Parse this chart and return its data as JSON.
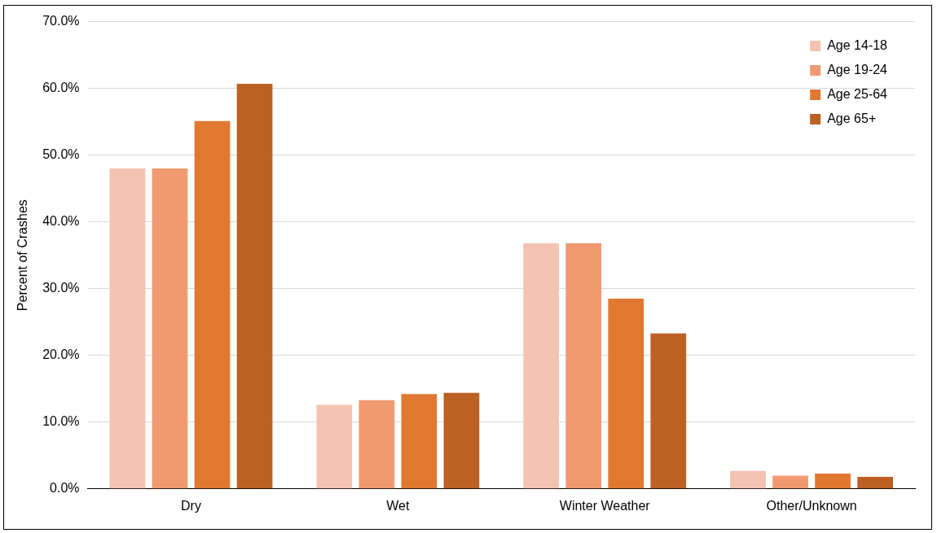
{
  "chart_data": {
    "type": "bar",
    "ylabel": "Percent of Crashes",
    "categories": [
      "Dry",
      "Wet",
      "Winter Weather",
      "Other/Unknown"
    ],
    "series": [
      {
        "name": "Age 14-18",
        "color": "#f4c2b0",
        "values": [
          48.0,
          12.6,
          36.8,
          2.7
        ]
      },
      {
        "name": "Age 19-24",
        "color": "#f09a72",
        "values": [
          48.0,
          13.3,
          36.8,
          2.0
        ]
      },
      {
        "name": "Age 25-64",
        "color": "#e07830",
        "values": [
          55.1,
          14.2,
          28.5,
          2.3
        ]
      },
      {
        "name": "Age 65+",
        "color": "#bc6024",
        "values": [
          60.7,
          14.4,
          23.3,
          1.8
        ]
      }
    ],
    "ylim": [
      0,
      70
    ],
    "yticks": [
      {
        "value": 0,
        "label": "0.0%"
      },
      {
        "value": 10,
        "label": "10.0%"
      },
      {
        "value": 20,
        "label": "20.0%"
      },
      {
        "value": 30,
        "label": "30.0%"
      },
      {
        "value": 40,
        "label": "40.0%"
      },
      {
        "value": 50,
        "label": "50.0%"
      },
      {
        "value": 60,
        "label": "60.0%"
      },
      {
        "value": 70,
        "label": "70.0%"
      }
    ],
    "grid": "y",
    "legend": "top right"
  }
}
